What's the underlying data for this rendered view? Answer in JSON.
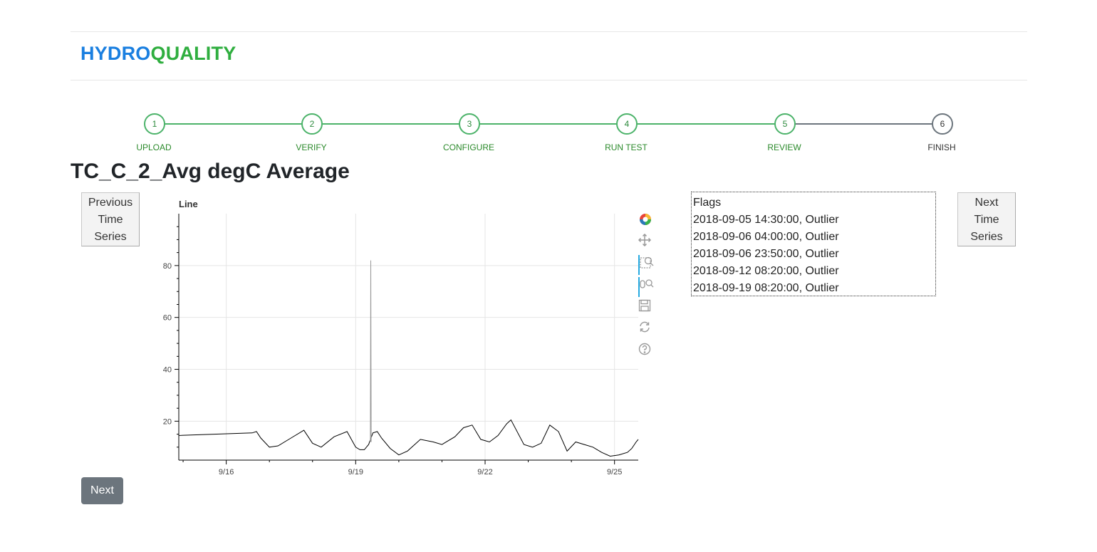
{
  "brand": {
    "part1": "HYDRO",
    "part2": "QUALITY"
  },
  "steps": [
    {
      "number": "1",
      "label": "UPLOAD",
      "done": true
    },
    {
      "number": "2",
      "label": "VERIFY",
      "done": true
    },
    {
      "number": "3",
      "label": "CONFIGURE",
      "done": true
    },
    {
      "number": "4",
      "label": "RUN TEST",
      "done": true
    },
    {
      "number": "5",
      "label": "REVIEW",
      "done": true
    },
    {
      "number": "6",
      "label": "FINISH",
      "done": false
    }
  ],
  "page_title": "TC_C_2_Avg degC Average",
  "buttons": {
    "previous_series": "Previous Time Series",
    "next_series": "Next Time Series",
    "next": "Next"
  },
  "flags": {
    "header": "Flags",
    "items": [
      "2018-09-05 14:30:00, Outlier",
      "2018-09-06 04:00:00, Outlier",
      "2018-09-06 23:50:00, Outlier",
      "2018-09-12 08:20:00, Outlier",
      "2018-09-19 08:20:00, Outlier"
    ]
  },
  "toolbar": {
    "tools": [
      {
        "name": "bokeh-logo-icon",
        "active": false
      },
      {
        "name": "pan-icon",
        "active": false
      },
      {
        "name": "box-zoom-icon",
        "active": true
      },
      {
        "name": "wheel-zoom-icon",
        "active": true
      },
      {
        "name": "save-icon",
        "active": false
      },
      {
        "name": "reset-icon",
        "active": false
      },
      {
        "name": "help-icon",
        "active": false
      }
    ]
  },
  "colors": {
    "brand_blue": "#1a7fe0",
    "brand_green": "#2fae3f",
    "step_done": "#4cb36a",
    "step_pending": "#6c757d",
    "line": "#000000",
    "spike": "#999999"
  },
  "chart_data": {
    "type": "line",
    "title": "Line",
    "xlabel": "",
    "ylabel": "",
    "x_ticks": [
      "9/16",
      "9/19",
      "9/22",
      "9/25"
    ],
    "y_ticks": [
      20,
      40,
      60,
      80
    ],
    "ylim": [
      5,
      100
    ],
    "xlim_days": [
      14.9,
      25.55
    ],
    "grid": true,
    "series": [
      {
        "x": [
          14.9,
          16.6,
          16.7,
          16.8,
          17.0,
          17.2,
          17.5,
          17.8,
          18.0,
          18.2,
          18.5,
          18.8,
          19.0,
          19.1,
          19.2,
          19.3,
          19.4,
          19.5,
          19.6,
          19.8,
          20.0,
          20.2,
          20.5,
          20.8,
          21.0,
          21.3,
          21.5,
          21.7,
          21.9,
          22.1,
          22.3,
          22.5,
          22.6,
          22.9,
          23.1,
          23.3,
          23.5,
          23.7,
          23.9,
          24.1,
          24.3,
          24.5,
          24.7,
          24.9,
          25.1,
          25.3,
          25.4,
          25.5,
          25.55
        ],
        "y": [
          14.5,
          15.5,
          16.0,
          13.5,
          10.0,
          10.5,
          13.5,
          16.5,
          11.5,
          10.0,
          14.0,
          16.0,
          10.0,
          9.0,
          9.0,
          11.0,
          15.5,
          16.0,
          13.5,
          9.5,
          7.0,
          8.5,
          13.0,
          12.0,
          11.0,
          14.0,
          17.5,
          18.5,
          13.0,
          12.0,
          14.5,
          19.0,
          20.5,
          11.0,
          10.0,
          11.5,
          18.5,
          16.0,
          8.5,
          12.0,
          11.0,
          10.0,
          8.0,
          6.5,
          7.0,
          8.0,
          9.5,
          12.0,
          13.0
        ]
      },
      {
        "name": "",
        "x": [
          19.34,
          19.35,
          19.36
        ],
        "y": [
          12.0,
          82.0,
          12.0
        ]
      }
    ]
  }
}
